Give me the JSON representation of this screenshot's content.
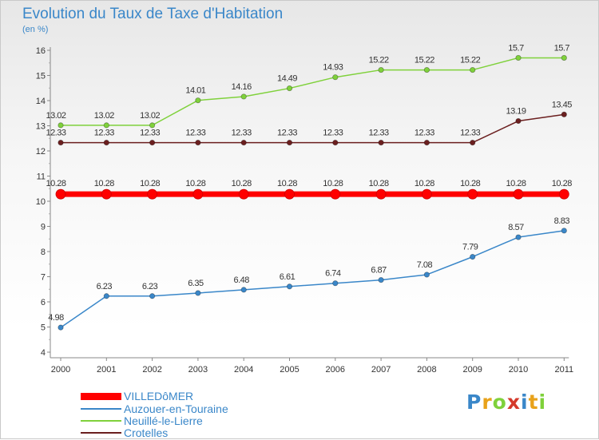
{
  "header": {
    "title": "Evolution du Taux de Taxe d'Habitation",
    "unit": "(en %)"
  },
  "logo": {
    "text": "Proxiti"
  },
  "chart_data": {
    "type": "line",
    "title": "Evolution du Taux de Taxe d'Habitation",
    "ylabel": "(en %)",
    "xlabel": "",
    "x": [
      "2000",
      "2001",
      "2002",
      "2003",
      "2004",
      "2005",
      "2006",
      "2007",
      "2008",
      "2009",
      "2010",
      "2011"
    ],
    "ylim": [
      4,
      16
    ],
    "yticks": [
      "4",
      "5",
      "6",
      "7",
      "8",
      "9",
      "10",
      "11",
      "12",
      "13",
      "14",
      "15",
      "16"
    ],
    "grid": false,
    "legend_position": "bottom-left",
    "series": [
      {
        "name": "VILLEDôMER",
        "color": "#ff0000",
        "values": [
          10.28,
          10.28,
          10.28,
          10.28,
          10.28,
          10.28,
          10.28,
          10.28,
          10.28,
          10.28,
          10.28,
          10.28
        ],
        "labels": [
          "10.28",
          "10.28",
          "10.28",
          "10.28",
          "10.28",
          "10.28",
          "10.28",
          "10.28",
          "10.28",
          "10.28",
          "10.28",
          "10.28"
        ]
      },
      {
        "name": "Auzouer-en-Touraine",
        "color": "#3a87c9",
        "values": [
          4.98,
          6.23,
          6.23,
          6.35,
          6.48,
          6.61,
          6.74,
          6.87,
          7.08,
          7.79,
          8.57,
          8.83
        ],
        "labels": [
          "4.98",
          "6.23",
          "6.23",
          "6.35",
          "6.48",
          "6.61",
          "6.74",
          "6.87",
          "7.08",
          "7.79",
          "8.57",
          "8.83"
        ]
      },
      {
        "name": "Neuillé-le-Lierre",
        "color": "#7fd13b",
        "values": [
          13.02,
          13.02,
          13.02,
          14.01,
          14.16,
          14.49,
          14.93,
          15.22,
          15.22,
          15.22,
          15.7,
          15.7
        ],
        "labels": [
          "13.02",
          "13.02",
          "13.02",
          "14.01",
          "14.16",
          "14.49",
          "14.93",
          "15.22",
          "15.22",
          "15.22",
          "15.7",
          "15.7"
        ]
      },
      {
        "name": "Crotelles",
        "color": "#6b1f1f",
        "values": [
          12.33,
          12.33,
          12.33,
          12.33,
          12.33,
          12.33,
          12.33,
          12.33,
          12.33,
          12.33,
          13.19,
          13.45
        ],
        "labels": [
          "12.33",
          "12.33",
          "12.33",
          "12.33",
          "12.33",
          "12.33",
          "12.33",
          "12.33",
          "12.33",
          "12.33",
          "13.19",
          "13.45"
        ]
      }
    ]
  }
}
